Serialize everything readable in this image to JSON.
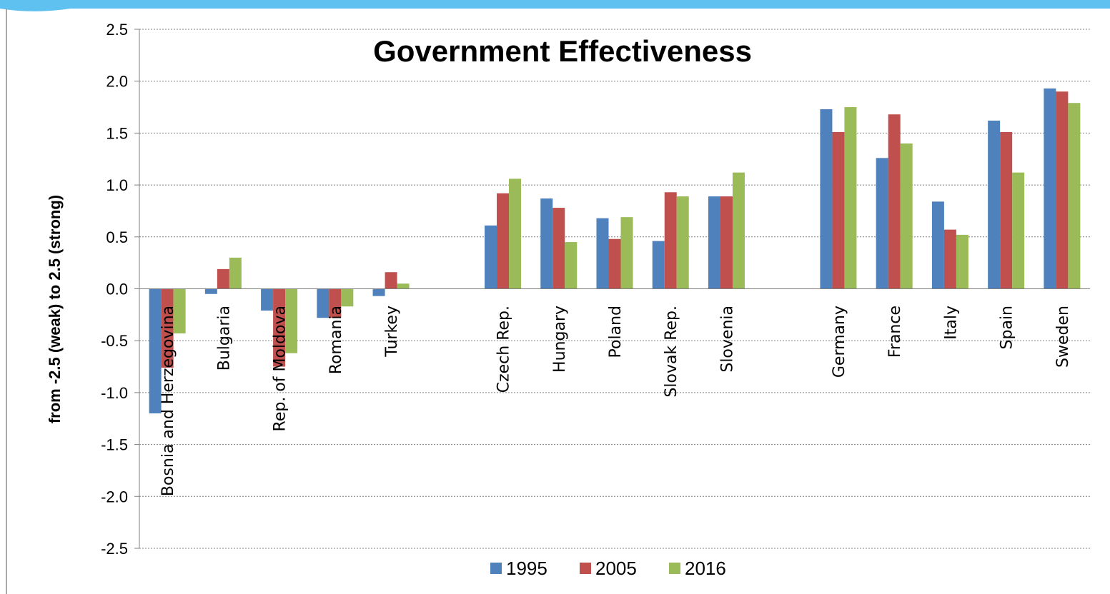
{
  "chart_data": {
    "type": "bar",
    "title": "Government Effectiveness",
    "ylabel": "from -2.5 (weak) to 2.5 (strong)",
    "xlabel": "",
    "ylim": [
      -2.5,
      2.5
    ],
    "yticks": [
      "2.5",
      "2.0",
      "1.5",
      "1.0",
      "0.5",
      "0.0",
      "-0.5",
      "-1.0",
      "-1.5",
      "-2.0",
      "-2.5"
    ],
    "grid": true,
    "legend_position": "bottom",
    "categories": [
      "Bosnia and Herzegovina",
      "Bulgaria",
      "Rep. of Moldova",
      "Romania",
      "Turkey",
      "",
      "Czech Rep.",
      "Hungary",
      "Poland",
      "Slovak Rep.",
      "Slovenia",
      "",
      "Germany",
      "France",
      "Italy",
      "Spain",
      "Sweden"
    ],
    "series": [
      {
        "name": "1995",
        "color": "#4f81bd",
        "values": [
          -1.2,
          -0.05,
          -0.21,
          -0.28,
          -0.07,
          null,
          0.61,
          0.87,
          0.68,
          0.46,
          0.89,
          null,
          1.73,
          1.26,
          0.84,
          1.62,
          1.93
        ]
      },
      {
        "name": "2005",
        "color": "#c0504d",
        "values": [
          -0.76,
          0.19,
          -0.75,
          -0.28,
          0.16,
          null,
          0.92,
          0.78,
          0.48,
          0.93,
          0.89,
          null,
          1.51,
          1.68,
          0.57,
          1.51,
          1.9
        ]
      },
      {
        "name": "2016",
        "color": "#9bbb59",
        "values": [
          -0.43,
          0.3,
          -0.62,
          -0.17,
          0.05,
          null,
          1.06,
          0.45,
          0.69,
          0.89,
          1.12,
          null,
          1.75,
          1.4,
          0.52,
          1.12,
          1.79
        ]
      }
    ]
  },
  "colors": {
    "top_band": "#5ec1ef",
    "grid": "#7f7f7f",
    "axis": "#808080"
  }
}
